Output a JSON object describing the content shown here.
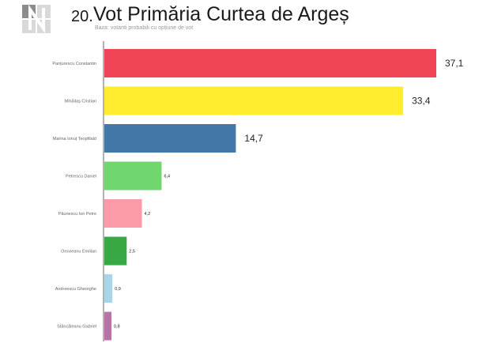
{
  "header": {
    "number": "20.",
    "title": "Vot Primăria Curtea de Argeș",
    "subtitle": "Baza: votanti probabili cu opțiune de vot"
  },
  "chart_data": {
    "type": "bar",
    "orientation": "horizontal",
    "title": "Vot Primăria Curtea de Argeș",
    "subtitle": "Baza: votanti probabili cu opțiune de vot",
    "grid": false,
    "legend": "none",
    "xlim": [
      0,
      37.1
    ],
    "categories": [
      "Panțurescu Constantin",
      "Mihăilaș Cristian",
      "Marina Ionuț Teopfilald",
      "Petrescu Daniel",
      "Păunescu Ion Petre",
      "Orovieanu Emilian",
      "Andreescu Gheorghe",
      "Stăncăleanu Gabriel"
    ],
    "values": [
      37.1,
      33.4,
      14.7,
      6.4,
      4.2,
      2.5,
      0.9,
      0.8
    ],
    "value_labels": [
      "37,1",
      "33,4",
      "14,7",
      "6,4",
      "4,2",
      "2,5",
      "0,9",
      "0,8"
    ],
    "colors": [
      "#f04556",
      "#ffec2e",
      "#4377a8",
      "#72d66f",
      "#fc9ba8",
      "#37a843",
      "#a8d4ec",
      "#b573a8"
    ]
  }
}
